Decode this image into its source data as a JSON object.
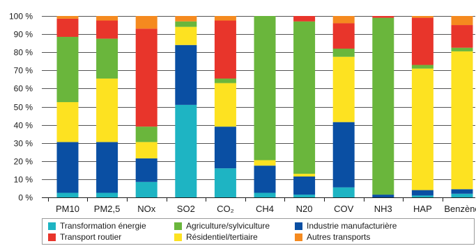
{
  "chart_data": {
    "type": "bar",
    "stacked": true,
    "categories": [
      "PM10",
      "PM2,5",
      "NOx",
      "SO2",
      "CO₂",
      "CH4",
      "N20",
      "COV",
      "NH3",
      "HAP",
      "Benzène"
    ],
    "ylim": [
      0,
      100
    ],
    "yticks": [
      0,
      10,
      20,
      30,
      40,
      50,
      60,
      70,
      80,
      90,
      100
    ],
    "ytick_labels": [
      "0 %",
      "10 %",
      "20 %",
      "30 %",
      "40 %",
      "50 %",
      "60 %",
      "70 %",
      "80 %",
      "90 %",
      "100 %"
    ],
    "grid": true,
    "legend_position": "bottom",
    "series": [
      {
        "name": "Transformation énergie",
        "color": "#1eb4c3",
        "values": [
          2.5,
          2.5,
          8.5,
          51,
          16,
          2.5,
          1.5,
          5.5,
          0,
          1,
          2
        ]
      },
      {
        "name": "Industrie manufacturière",
        "color": "#0a4fa3",
        "values": [
          28,
          28,
          13,
          33,
          23,
          15,
          10,
          36,
          1.5,
          3,
          2.5
        ]
      },
      {
        "name": "Résidentiel/tertiaire",
        "color": "#fde221",
        "values": [
          22,
          35,
          9,
          10,
          24,
          3,
          1.5,
          36,
          0,
          67,
          76
        ]
      },
      {
        "name": "Agriculture/sylviculture",
        "color": "#6ab63c",
        "values": [
          36,
          22,
          8.5,
          3,
          2.5,
          79.5,
          84,
          4.5,
          97.5,
          2,
          2
        ]
      },
      {
        "name": "Transport routier",
        "color": "#e8352b",
        "values": [
          10,
          10,
          54,
          0,
          32,
          0,
          3,
          14,
          1,
          26,
          12.5
        ]
      },
      {
        "name": "Autres transports",
        "color": "#f58a1f",
        "values": [
          1.5,
          2.5,
          7,
          3,
          2.5,
          0,
          0,
          4,
          0,
          1,
          5
        ]
      }
    ]
  },
  "legend": [
    {
      "label": "Transformation énergie",
      "color": "#1eb4c3"
    },
    {
      "label": "Agriculture/sylviculture",
      "color": "#6ab63c"
    },
    {
      "label": "Industrie manufacturière",
      "color": "#0a4fa3"
    },
    {
      "label": "Transport routier",
      "color": "#e8352b"
    },
    {
      "label": "Résidentiel/tertiaire",
      "color": "#fde221"
    },
    {
      "label": "Autres transports",
      "color": "#f58a1f"
    }
  ]
}
